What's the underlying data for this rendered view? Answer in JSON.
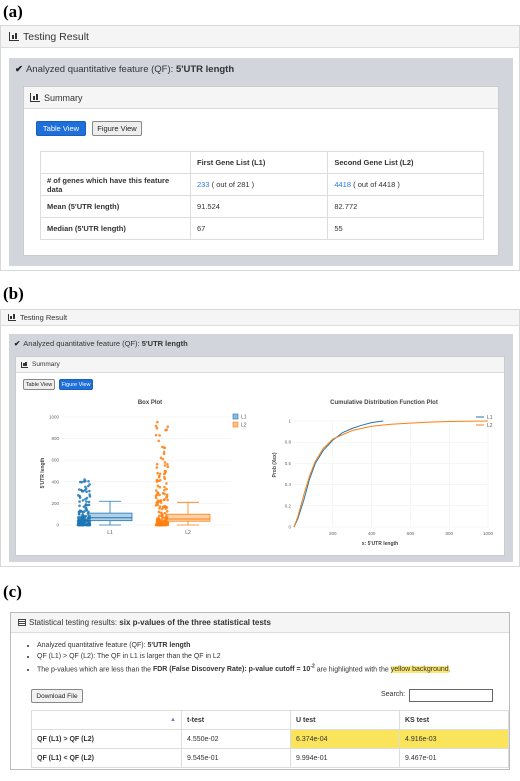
{
  "labels": {
    "a": "(a)",
    "b": "(b)",
    "c": "(c)"
  },
  "a": {
    "header": "Testing Result",
    "feature_prefix": "Analyzed quantitative feature (QF):",
    "feature_name": "5'UTR length",
    "summary_title": "Summary",
    "table_view": "Table View",
    "figure_view": "Figure View",
    "columns": [
      "First Gene List (L1)",
      "Second Gene List (L2)"
    ],
    "rows": [
      {
        "label": "# of genes which have this feature data",
        "l1_link": "233",
        "l1_rest": "( out of 281 )",
        "l2_link": "4418",
        "l2_rest": "( out of 4418 )"
      },
      {
        "label": "Mean (5'UTR length)",
        "l1": "91.524",
        "l2": "82.772"
      },
      {
        "label": "Median (5'UTR length)",
        "l1": "67",
        "l2": "55"
      }
    ]
  },
  "b": {
    "header": "Testing Result",
    "feature_prefix": "Analyzed quantitative feature (QF):",
    "feature_name": "5'UTR length",
    "summary_title": "Summary",
    "table_view": "Table View",
    "figure_view": "Figure View",
    "box_title": "Box Plot",
    "cdf_title": "Cumulative Distribution Function Plot",
    "box_ylabel": "5'UTR length",
    "cdf_ylabel": "Prob (X≤x)",
    "cdf_xlabel": "x: 5'UTR length",
    "colors": {
      "l1": "#1f77b4",
      "l2": "#ff7f0e"
    }
  },
  "c": {
    "header_prefix": "Statistical testing results:",
    "header_bold": "six p-values of the three statistical tests",
    "note1_prefix": "Analyzed quantitative feature (QF):",
    "note1_bold": "5'UTR length",
    "note2": "QF (L1) > QF (L2): The QF in L1 is larger than the QF in L2",
    "note3_prefix": "The p-values which are less than the",
    "note3_bold": "FDR (False Discovery Rate): p-value cutoff = 10",
    "note3_sup": "-2",
    "note3_mid": "are highlighted with the",
    "note3_hl": "yellow background",
    "note3_end": ".",
    "download": "Download File",
    "search_label": "Search:",
    "columns": [
      "t-test",
      "U test",
      "KS test"
    ],
    "rows": [
      {
        "label": "QF (L1) > QF (L2)",
        "t": "4.550e-02",
        "u": "6.374e-04",
        "ks": "4.916e-03"
      },
      {
        "label": "QF (L1) < QF (L2)",
        "t": "9.545e-01",
        "u": "9.994e-01",
        "ks": "9.467e-01"
      }
    ]
  },
  "chart_data": [
    {
      "type": "box",
      "title": "Box Plot",
      "ylabel": "5'UTR length",
      "categories": [
        "L1",
        "L2"
      ],
      "legend": [
        "L1",
        "L2"
      ],
      "legend_position": "top-right",
      "yticks": [
        0,
        200,
        400,
        600,
        800,
        1000
      ],
      "ylim": [
        0,
        1000
      ],
      "series": [
        {
          "name": "L1",
          "min": 0,
          "q1": 40,
          "median": 67,
          "q3": 110,
          "max": 220,
          "outlier_max": 460
        },
        {
          "name": "L2",
          "min": 0,
          "q1": 35,
          "median": 55,
          "q3": 100,
          "max": 210,
          "outlier_max": 980
        }
      ]
    },
    {
      "type": "line",
      "title": "Cumulative Distribution Function Plot",
      "xlabel": "x: 5'UTR length",
      "ylabel": "Prob (X≤x)",
      "xticks": [
        200,
        400,
        600,
        800,
        1000
      ],
      "yticks": [
        0,
        0.2,
        0.4,
        0.6,
        0.8,
        1
      ],
      "xlim": [
        0,
        1000
      ],
      "ylim": [
        0,
        1
      ],
      "legend": [
        "L1",
        "L2"
      ],
      "legend_position": "top-right",
      "series": [
        {
          "name": "L1",
          "x": [
            0,
            20,
            50,
            80,
            110,
            150,
            200,
            250,
            300,
            350,
            400,
            460
          ],
          "y": [
            0,
            0.08,
            0.25,
            0.45,
            0.6,
            0.72,
            0.82,
            0.89,
            0.93,
            0.96,
            0.985,
            1
          ]
        },
        {
          "name": "L2",
          "x": [
            0,
            20,
            50,
            80,
            110,
            150,
            200,
            300,
            400,
            500,
            600,
            700,
            800,
            900,
            1000
          ],
          "y": [
            0,
            0.1,
            0.3,
            0.48,
            0.62,
            0.74,
            0.83,
            0.91,
            0.95,
            0.97,
            0.98,
            0.99,
            0.995,
            0.998,
            1
          ]
        }
      ]
    }
  ]
}
